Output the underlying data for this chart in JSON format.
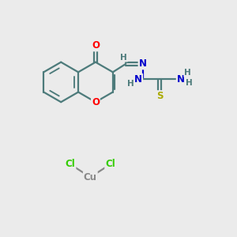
{
  "bg_color": "#ebebeb",
  "bond_color": "#4d7b7b",
  "bond_lw": 1.6,
  "atom_colors": {
    "O_carbonyl": "#ff0000",
    "O_ring": "#ff0000",
    "N": "#0000cc",
    "S": "#aaaa00",
    "Cl": "#33cc00",
    "Cu": "#888888",
    "H": "#4d7b7b",
    "C": "#4d7b7b"
  },
  "font_size_atom": 8.5,
  "font_size_h": 7.5,
  "xlim": [
    0,
    10
  ],
  "ylim": [
    0,
    10
  ]
}
